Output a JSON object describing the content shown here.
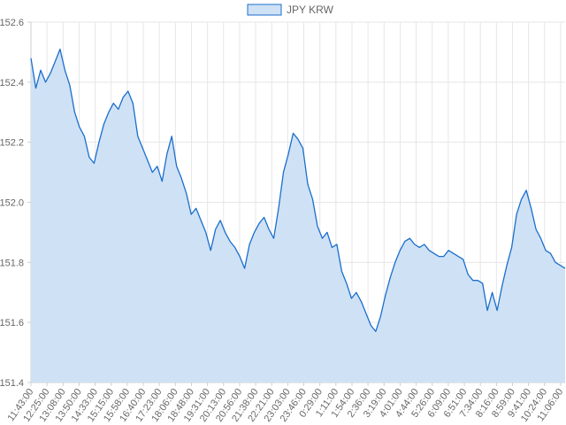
{
  "chart_data": {
    "type": "area",
    "title": "",
    "xlabel": "",
    "ylabel": "",
    "legend": {
      "position": "top",
      "entries": [
        "JPY KRW"
      ]
    },
    "grid": true,
    "ylim": [
      151.4,
      152.6
    ],
    "y_ticks": [
      "152.6",
      "152.4",
      "152.2",
      "152.0",
      "151.8",
      "151.6",
      "151.4"
    ],
    "x_tick_labels": [
      "11:43:00",
      "12:25:00",
      "13:08:00",
      "13:50:00",
      "14:33:00",
      "15:15:00",
      "15:58:00",
      "16:40:00",
      "17:23:00",
      "18:06:00",
      "18:48:00",
      "19:31:00",
      "20:13:00",
      "20:56:00",
      "21:38:00",
      "22:21:00",
      "23:03:00",
      "23:46:00",
      "0:29:00",
      "1:11:00",
      "1:54:00",
      "2:36:00",
      "3:19:00",
      "4:01:00",
      "4:44:00",
      "5:26:00",
      "6:09:00",
      "6:51:00",
      "7:34:00",
      "8:16:00",
      "8:59:00",
      "9:41:00",
      "10:24:00",
      "11:06:00"
    ],
    "series": [
      {
        "name": "JPY KRW",
        "color": "#1a6fcc",
        "fill": "#cfe1f5",
        "values": [
          152.48,
          152.38,
          152.44,
          152.4,
          152.43,
          152.47,
          152.51,
          152.44,
          152.39,
          152.3,
          152.25,
          152.22,
          152.15,
          152.13,
          152.2,
          152.26,
          152.3,
          152.33,
          152.31,
          152.35,
          152.37,
          152.33,
          152.22,
          152.18,
          152.14,
          152.1,
          152.12,
          152.07,
          152.16,
          152.22,
          152.12,
          152.08,
          152.03,
          151.96,
          151.98,
          151.94,
          151.9,
          151.84,
          151.91,
          151.94,
          151.9,
          151.87,
          151.85,
          151.82,
          151.78,
          151.86,
          151.9,
          151.93,
          151.95,
          151.91,
          151.88,
          151.98,
          152.1,
          152.16,
          152.23,
          152.21,
          152.18,
          152.06,
          152.01,
          151.92,
          151.88,
          151.9,
          151.85,
          151.86,
          151.77,
          151.73,
          151.68,
          151.7,
          151.67,
          151.63,
          151.59,
          151.57,
          151.62,
          151.69,
          151.75,
          151.8,
          151.84,
          151.87,
          151.88,
          151.86,
          151.85,
          151.86,
          151.84,
          151.83,
          151.82,
          151.82,
          151.84,
          151.83,
          151.82,
          151.81,
          151.76,
          151.74,
          151.74,
          151.73,
          151.64,
          151.7,
          151.64,
          151.72,
          151.79,
          151.85,
          151.96,
          152.01,
          152.04,
          151.98,
          151.91,
          151.88,
          151.84,
          151.83,
          151.8,
          151.79,
          151.78
        ]
      }
    ]
  }
}
